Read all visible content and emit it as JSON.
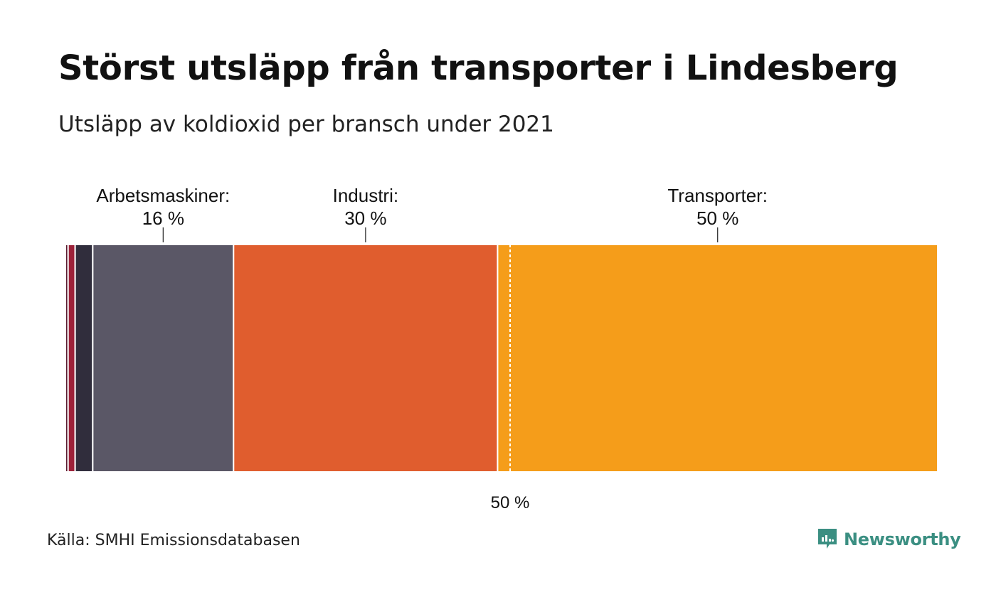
{
  "header": {
    "title": "Störst utsläpp från transporter i Lindesberg",
    "subtitle": "Utsläpp av koldioxid per bransch under 2021"
  },
  "footer": {
    "source": "Källa: SMHI Emissionsdatabasen",
    "brand": "Newsworthy"
  },
  "chart_data": {
    "type": "bar",
    "orientation": "horizontal-stacked-100",
    "title": "Störst utsläpp från transporter i Lindesberg",
    "subtitle": "Utsläpp av koldioxid per bransch under 2021",
    "unit": "%",
    "segments": [
      {
        "label": "",
        "value": 0.3,
        "color": "#5b1a2e",
        "labeled": false
      },
      {
        "label": "",
        "value": 0.8,
        "color": "#9c2139",
        "labeled": false
      },
      {
        "label": "",
        "value": 2.0,
        "color": "#302d3c",
        "labeled": false
      },
      {
        "label": "Arbetsmaskiner:",
        "value": 16,
        "display": "16 %",
        "color": "#5a5766",
        "labeled": true
      },
      {
        "label": "Industri:",
        "value": 30,
        "display": "30 %",
        "color": "#e05d2e",
        "labeled": true
      },
      {
        "label": "Transporter:",
        "value": 50,
        "display": "50 %",
        "color": "#f59d1a",
        "labeled": true
      }
    ],
    "reference_line": {
      "value": 50,
      "label": "50 %"
    },
    "xlim": [
      0,
      100
    ]
  }
}
